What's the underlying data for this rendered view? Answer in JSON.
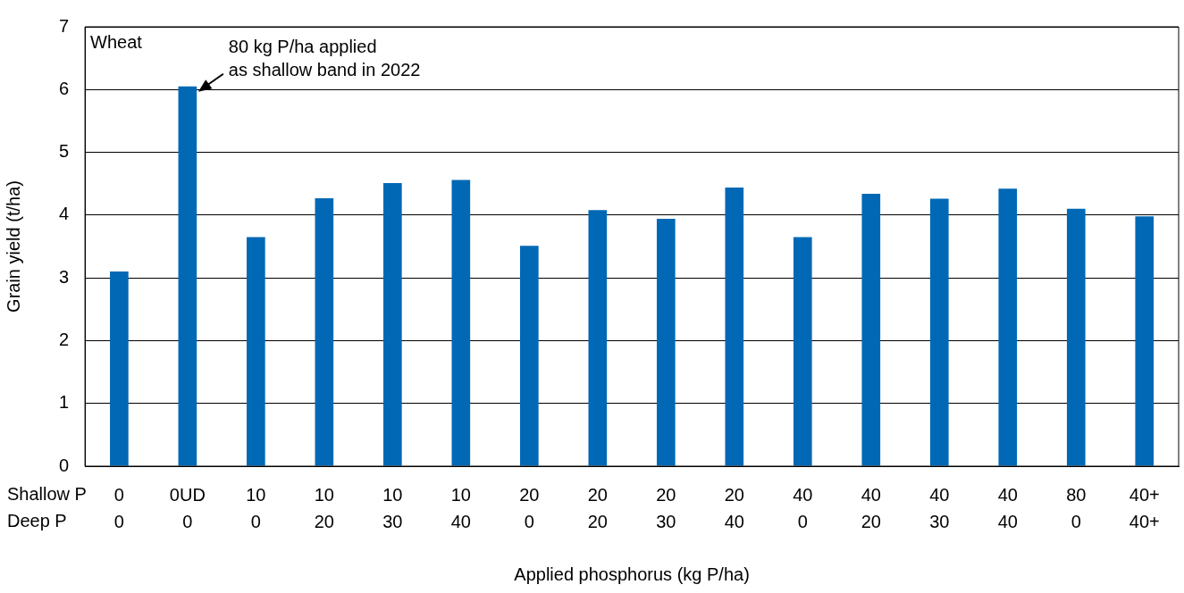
{
  "chart_data": {
    "type": "bar",
    "title": "Wheat",
    "xlabel": "Applied phosphorus (kg P/ha)",
    "ylabel": "Grain yield (t/ha)",
    "categories": [
      "0\n0",
      "0UD\n0",
      "10\n0",
      "10\n20",
      "10\n30",
      "10\n40",
      "20\n0",
      "20\n20",
      "20\n30",
      "20\n40",
      "40\n0",
      "40\n20",
      "40\n30",
      "40\n40",
      "80\n0",
      "40+\n40+"
    ],
    "values": [
      3.1,
      6.05,
      3.65,
      4.27,
      4.51,
      4.56,
      3.51,
      4.08,
      3.94,
      4.44,
      3.65,
      4.34,
      4.26,
      4.42,
      4.1,
      3.98
    ],
    "color": "#0068b5",
    "ylim": [
      0,
      7
    ],
    "yticks": [
      0,
      1,
      2,
      3,
      4,
      5,
      6,
      7
    ],
    "grid": "y",
    "legend": false,
    "annotations": [
      "Shallow P",
      "Deep P",
      {
        "text": "80 kg P/ha applied\nas shallow band in 2022",
        "x": "0UD\n0",
        "y": 6.05
      }
    ]
  }
}
